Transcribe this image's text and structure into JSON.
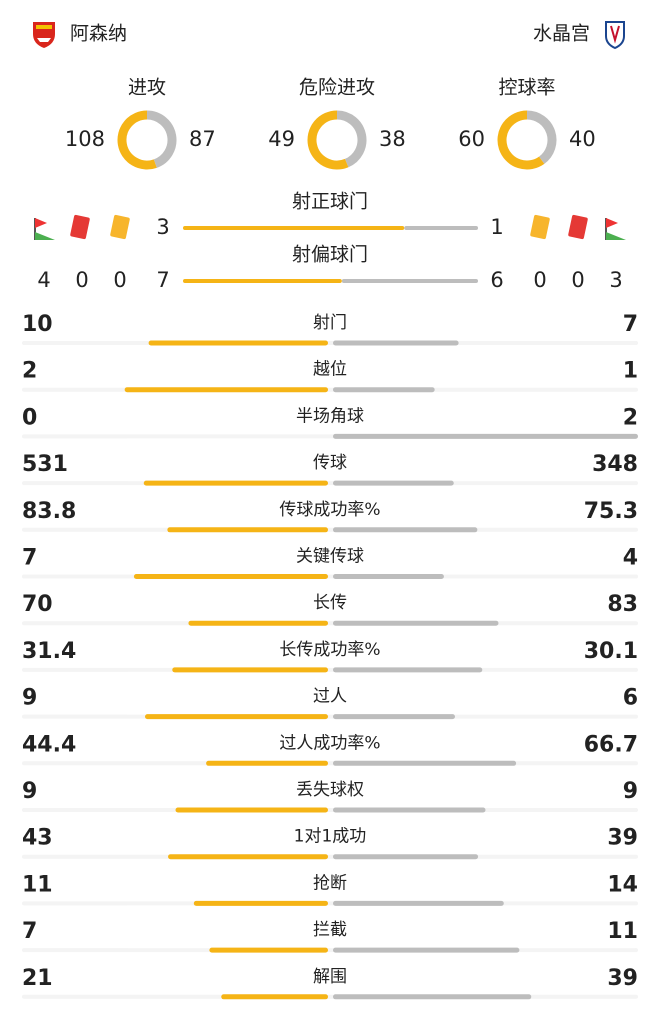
{
  "header": {
    "home": "阿森纳",
    "away": "水晶宫"
  },
  "donuts": [
    {
      "label": "进攻",
      "home": 108,
      "away": 87
    },
    {
      "label": "危险进攻",
      "home": 49,
      "away": 38
    },
    {
      "label": "控球率",
      "home": 60,
      "away": 40
    }
  ],
  "discipline": {
    "home": {
      "corners": 4,
      "red_cards": 0,
      "yellow_cards": 0
    },
    "away": {
      "yellow_cards": 0,
      "red_cards": 0,
      "corners": 3
    }
  },
  "shots": [
    {
      "label": "射正球门",
      "home": 3,
      "away": 1
    },
    {
      "label": "射偏球门",
      "home": 7,
      "away": 6
    }
  ],
  "stats": [
    {
      "label": "射门",
      "home": 10,
      "away": 7
    },
    {
      "label": "越位",
      "home": 2,
      "away": 1
    },
    {
      "label": "半场角球",
      "home": 0,
      "away": 2
    },
    {
      "label": "传球",
      "home": 531,
      "away": 348
    },
    {
      "label": "传球成功率%",
      "home": 83.8,
      "away": 75.3
    },
    {
      "label": "关键传球",
      "home": 7,
      "away": 4
    },
    {
      "label": "长传",
      "home": 70,
      "away": 83
    },
    {
      "label": "长传成功率%",
      "home": 31.4,
      "away": 30.1
    },
    {
      "label": "过人",
      "home": 9,
      "away": 6
    },
    {
      "label": "过人成功率%",
      "home": 44.4,
      "away": 66.7
    },
    {
      "label": "丢失球权",
      "home": 9,
      "away": 9
    },
    {
      "label": "1对1成功",
      "home": 43,
      "away": 39
    },
    {
      "label": "抢断",
      "home": 11,
      "away": 14
    },
    {
      "label": "拦截",
      "home": 7,
      "away": 11
    },
    {
      "label": "解围",
      "home": 21,
      "away": 39
    }
  ]
}
